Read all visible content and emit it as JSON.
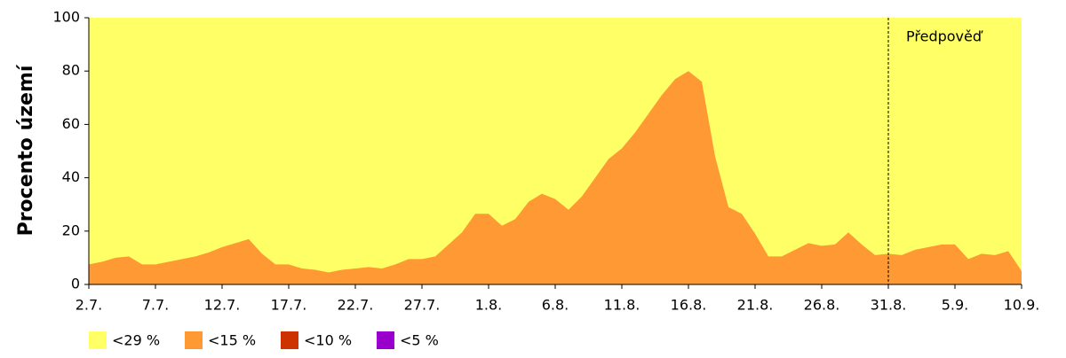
{
  "chart_data": {
    "type": "area",
    "ylabel": "Procento území",
    "categories": [
      "2.7.",
      null,
      null,
      null,
      null,
      "7.7.",
      null,
      null,
      null,
      null,
      "12.7.",
      null,
      null,
      null,
      null,
      "17.7.",
      null,
      null,
      null,
      null,
      "22.7.",
      null,
      null,
      null,
      null,
      "27.7.",
      null,
      null,
      null,
      null,
      "1.8.",
      null,
      null,
      null,
      null,
      "6.8.",
      null,
      null,
      null,
      null,
      "11.8.",
      null,
      null,
      null,
      null,
      "16.8.",
      null,
      null,
      null,
      null,
      "21.8.",
      null,
      null,
      null,
      null,
      "26.8.",
      null,
      null,
      null,
      null,
      "31.8.",
      null,
      null,
      null,
      null,
      "5.9.",
      null,
      null,
      null,
      null,
      "10.9."
    ],
    "series": [
      {
        "name": "<29 %",
        "color": "#ffff66",
        "values": [
          100,
          100,
          100,
          100,
          100,
          100,
          100,
          100,
          100,
          100,
          100,
          100,
          100,
          100,
          100,
          100,
          100,
          100,
          100,
          100,
          100,
          100,
          100,
          100,
          100,
          100,
          100,
          100,
          100,
          100,
          100,
          100,
          100,
          100,
          100,
          100,
          100,
          100,
          100,
          100,
          100,
          100,
          100,
          100,
          100,
          100,
          100,
          100,
          100,
          100,
          100,
          100,
          100,
          100,
          100,
          100,
          100,
          100,
          100,
          100,
          100,
          100,
          100,
          100,
          100,
          100,
          100,
          100,
          100,
          100,
          100
        ]
      },
      {
        "name": "<15 %",
        "color": "#ff9933",
        "values": [
          7.5,
          8.5,
          10,
          10.5,
          7.5,
          7.5,
          8.5,
          9.5,
          10.5,
          12,
          14,
          15.5,
          17,
          11.5,
          7.5,
          7.5,
          6,
          5.5,
          4.5,
          5.5,
          6,
          6.5,
          6,
          7.5,
          9.5,
          9.5,
          10.5,
          15,
          19.5,
          26.5,
          26.5,
          22,
          24.5,
          31,
          34,
          32,
          28,
          33,
          40,
          47,
          51,
          57,
          64,
          71,
          77,
          80,
          76,
          48,
          29,
          26.5,
          19,
          10.5,
          10.5,
          13,
          15.5,
          14.5,
          15,
          19.5,
          15,
          11,
          11.5,
          11,
          13,
          14,
          15,
          15,
          9.5,
          11.5,
          11,
          12.5,
          5
        ]
      },
      {
        "name": "<10 %",
        "color": "#cc3300",
        "values": [
          0,
          0,
          0,
          0,
          0,
          0,
          0,
          0,
          0,
          0,
          0,
          0,
          0,
          0,
          0,
          0,
          0,
          0,
          0,
          0,
          0,
          0,
          0,
          0,
          0,
          0,
          0,
          0,
          0,
          0,
          0,
          0,
          0,
          0,
          0,
          0,
          0,
          0,
          0,
          0,
          0,
          0,
          0,
          0,
          0,
          0,
          0,
          0,
          0,
          0,
          0,
          0,
          0,
          0,
          0,
          0,
          0,
          0,
          0,
          0,
          0,
          0,
          0,
          0,
          0,
          0,
          0,
          0,
          0,
          0,
          0
        ]
      },
      {
        "name": "<5 %",
        "color": "#9900cc",
        "values": [
          0,
          0,
          0,
          0,
          0,
          0,
          0,
          0,
          0,
          0,
          0,
          0,
          0,
          0,
          0,
          0,
          0,
          0,
          0,
          0,
          0,
          0,
          0,
          0,
          0,
          0,
          0,
          0,
          0,
          0,
          0,
          0,
          0,
          0,
          0,
          0,
          0,
          0,
          0,
          0,
          0,
          0,
          0,
          0,
          0,
          0,
          0,
          0,
          0,
          0,
          0,
          0,
          0,
          0,
          0,
          0,
          0,
          0,
          0,
          0,
          0,
          0,
          0,
          0,
          0,
          0,
          0,
          0,
          0,
          0,
          0
        ]
      }
    ],
    "forecast": {
      "label": "Předpověď",
      "x": "31.8."
    },
    "ylim": [
      0,
      100
    ],
    "yticks": [
      0,
      20,
      40,
      60,
      80,
      100
    ]
  }
}
